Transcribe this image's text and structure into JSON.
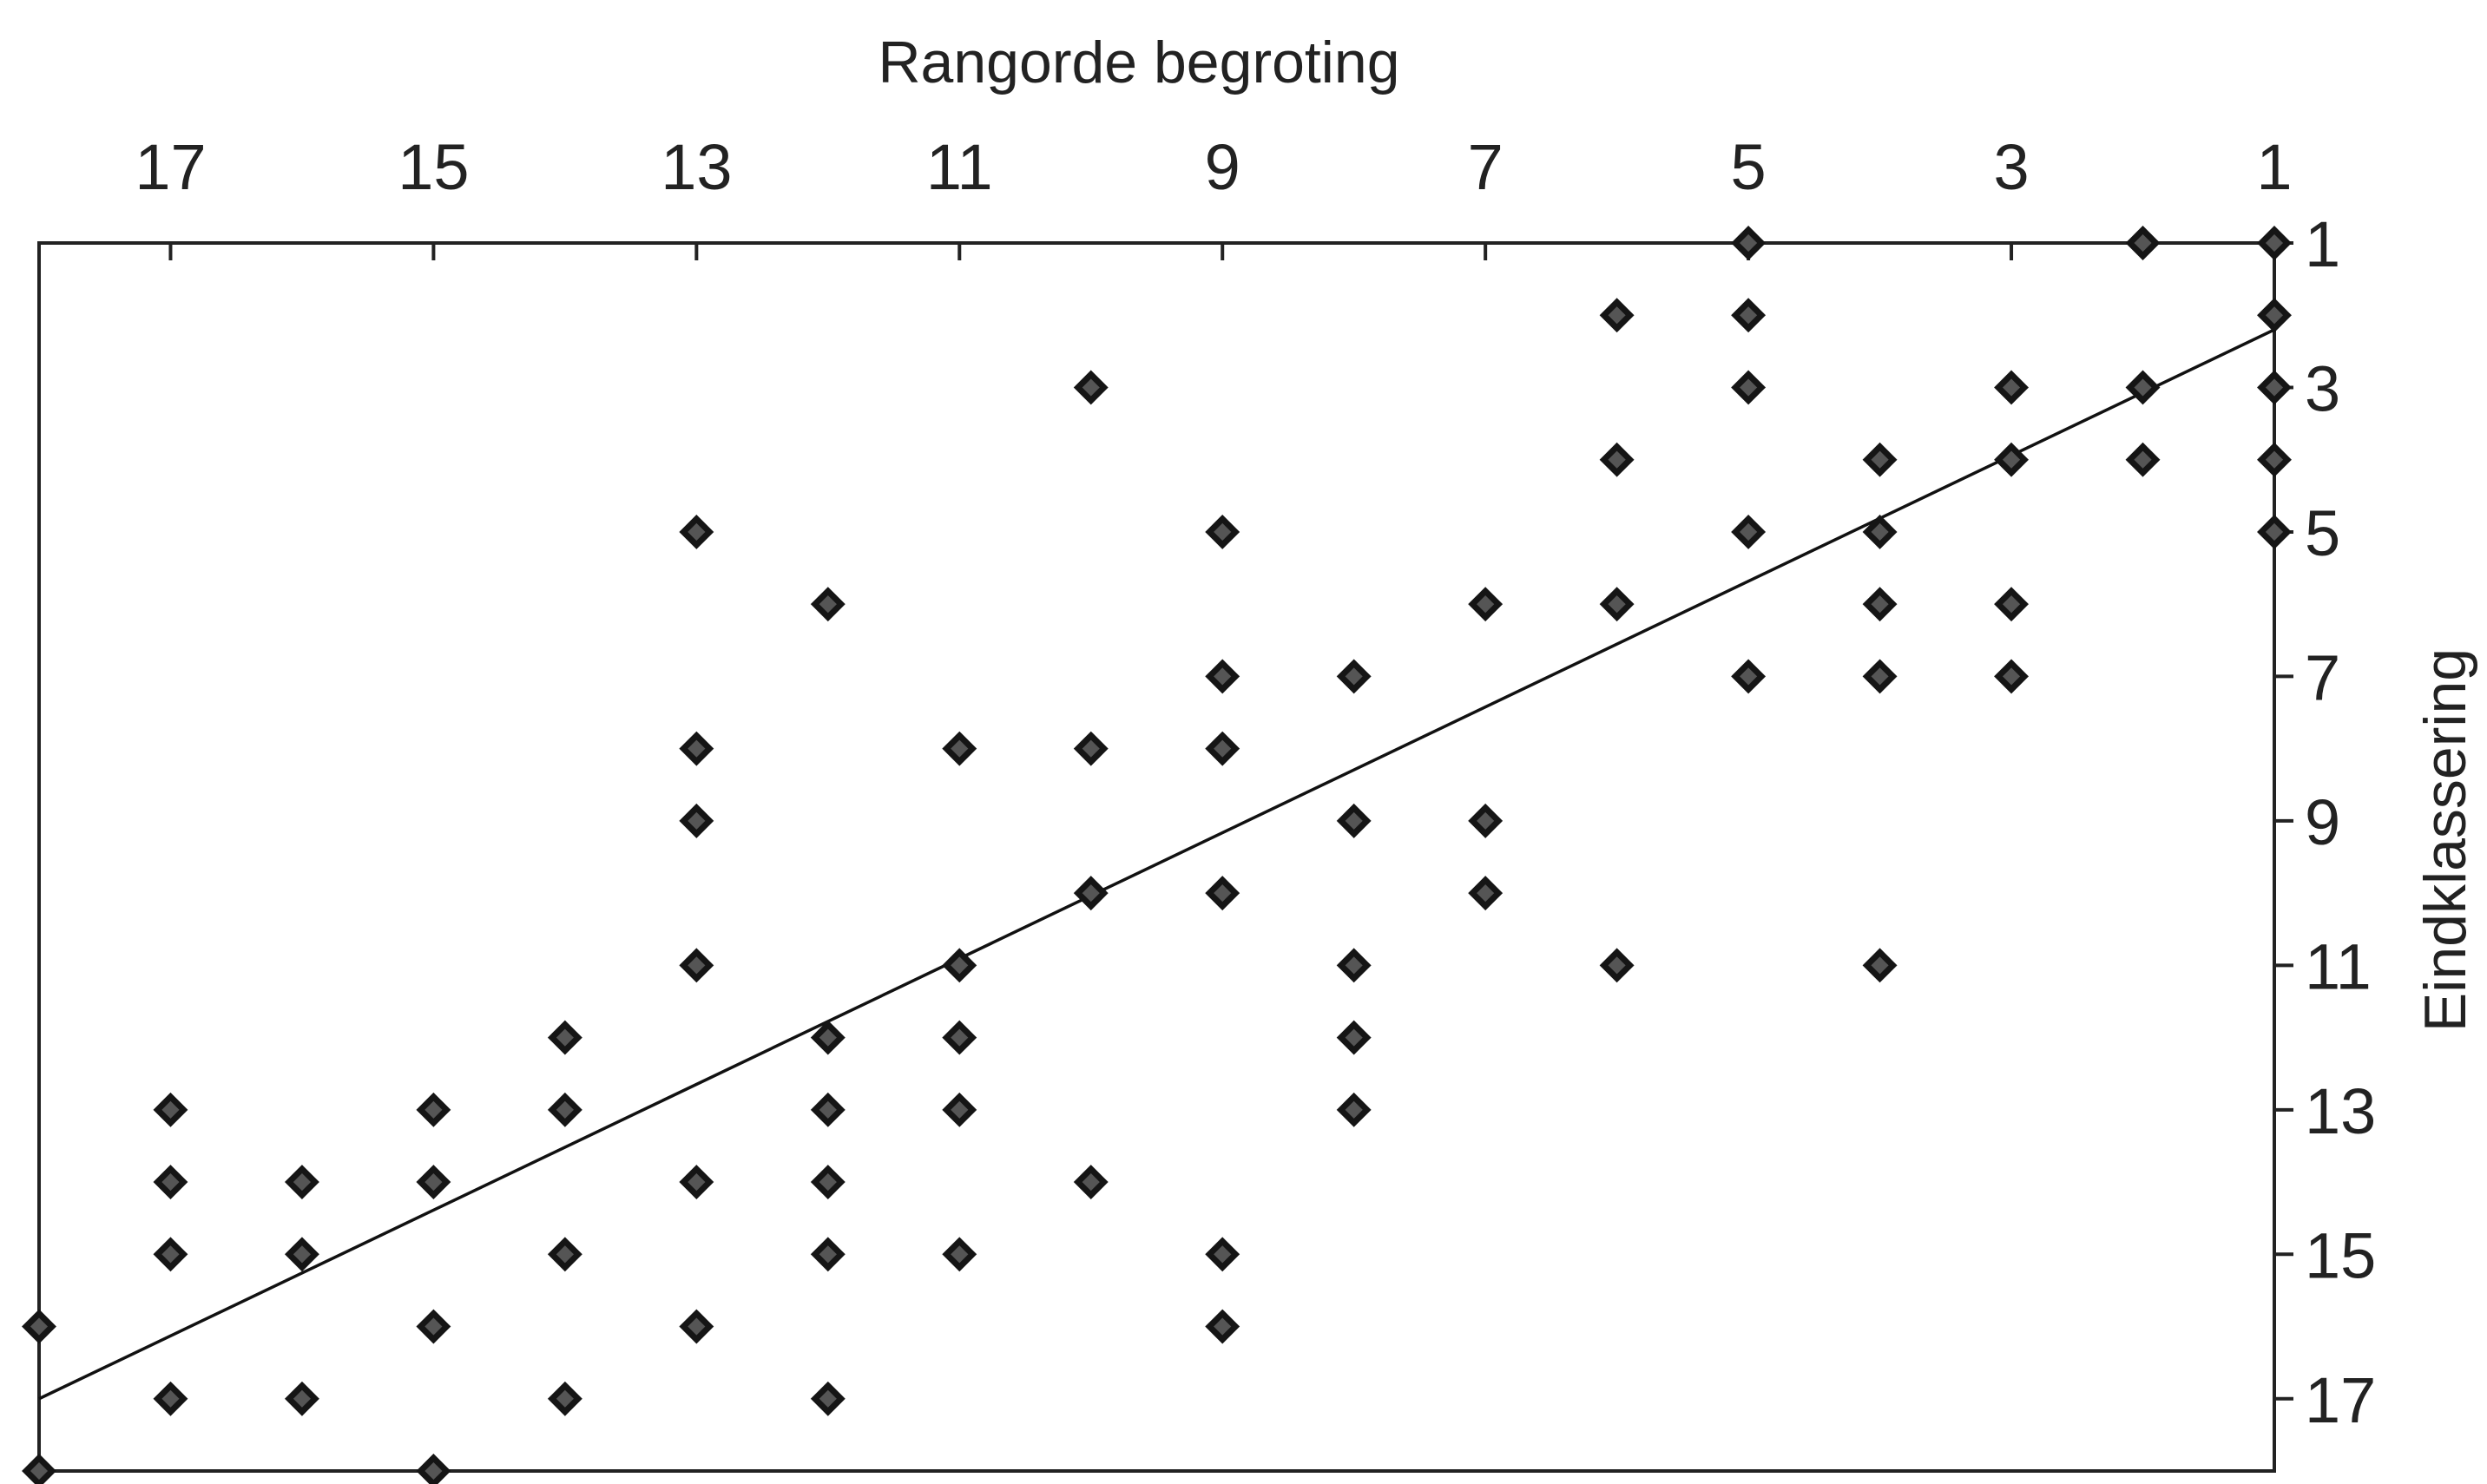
{
  "chart_data": {
    "type": "scatter",
    "title": "",
    "xlabel": "Rangorde begroting",
    "ylabel": "Eindklassering",
    "xlim": [
      18,
      1
    ],
    "ylim": [
      1,
      18
    ],
    "x_ticks": [
      17,
      15,
      13,
      11,
      9,
      7,
      5,
      3,
      1
    ],
    "y_ticks": [
      1,
      3,
      5,
      7,
      9,
      11,
      13,
      15,
      17
    ],
    "grid": false,
    "legend": "none",
    "marker_color": "#555555",
    "points": [
      {
        "x": 1,
        "y": 1
      },
      {
        "x": 1,
        "y": 2
      },
      {
        "x": 1,
        "y": 3
      },
      {
        "x": 1,
        "y": 4
      },
      {
        "x": 1,
        "y": 5
      },
      {
        "x": 2,
        "y": 1
      },
      {
        "x": 2,
        "y": 3
      },
      {
        "x": 2,
        "y": 4
      },
      {
        "x": 3,
        "y": 3
      },
      {
        "x": 3,
        "y": 4
      },
      {
        "x": 3,
        "y": 6
      },
      {
        "x": 3,
        "y": 7
      },
      {
        "x": 4,
        "y": 4
      },
      {
        "x": 4,
        "y": 5
      },
      {
        "x": 4,
        "y": 6
      },
      {
        "x": 4,
        "y": 7
      },
      {
        "x": 4,
        "y": 11
      },
      {
        "x": 5,
        "y": 1
      },
      {
        "x": 5,
        "y": 2
      },
      {
        "x": 5,
        "y": 3
      },
      {
        "x": 5,
        "y": 5
      },
      {
        "x": 5,
        "y": 7
      },
      {
        "x": 6,
        "y": 2
      },
      {
        "x": 6,
        "y": 4
      },
      {
        "x": 6,
        "y": 6
      },
      {
        "x": 6,
        "y": 11
      },
      {
        "x": 7,
        "y": 6
      },
      {
        "x": 7,
        "y": 9
      },
      {
        "x": 7,
        "y": 10
      },
      {
        "x": 8,
        "y": 7
      },
      {
        "x": 8,
        "y": 9
      },
      {
        "x": 8,
        "y": 11
      },
      {
        "x": 8,
        "y": 12
      },
      {
        "x": 8,
        "y": 13
      },
      {
        "x": 9,
        "y": 5
      },
      {
        "x": 9,
        "y": 7
      },
      {
        "x": 9,
        "y": 8
      },
      {
        "x": 9,
        "y": 10
      },
      {
        "x": 9,
        "y": 15
      },
      {
        "x": 9,
        "y": 16
      },
      {
        "x": 10,
        "y": 3
      },
      {
        "x": 10,
        "y": 8
      },
      {
        "x": 10,
        "y": 10
      },
      {
        "x": 10,
        "y": 14
      },
      {
        "x": 11,
        "y": 8
      },
      {
        "x": 11,
        "y": 11
      },
      {
        "x": 11,
        "y": 12
      },
      {
        "x": 11,
        "y": 13
      },
      {
        "x": 11,
        "y": 15
      },
      {
        "x": 12,
        "y": 6
      },
      {
        "x": 12,
        "y": 12
      },
      {
        "x": 12,
        "y": 13
      },
      {
        "x": 12,
        "y": 14
      },
      {
        "x": 12,
        "y": 15
      },
      {
        "x": 12,
        "y": 17
      },
      {
        "x": 13,
        "y": 5
      },
      {
        "x": 13,
        "y": 8
      },
      {
        "x": 13,
        "y": 9
      },
      {
        "x": 13,
        "y": 11
      },
      {
        "x": 13,
        "y": 14
      },
      {
        "x": 13,
        "y": 16
      },
      {
        "x": 14,
        "y": 12
      },
      {
        "x": 14,
        "y": 13
      },
      {
        "x": 14,
        "y": 15
      },
      {
        "x": 14,
        "y": 17
      },
      {
        "x": 15,
        "y": 13
      },
      {
        "x": 15,
        "y": 14
      },
      {
        "x": 15,
        "y": 16
      },
      {
        "x": 15,
        "y": 18
      },
      {
        "x": 16,
        "y": 14
      },
      {
        "x": 16,
        "y": 15
      },
      {
        "x": 16,
        "y": 17
      },
      {
        "x": 17,
        "y": 13
      },
      {
        "x": 17,
        "y": 14
      },
      {
        "x": 17,
        "y": 15
      },
      {
        "x": 17,
        "y": 17
      },
      {
        "x": 18,
        "y": 16
      },
      {
        "x": 18,
        "y": 18
      }
    ],
    "trend_line": {
      "x": [
        18,
        1
      ],
      "y": [
        17,
        2.2
      ]
    }
  }
}
